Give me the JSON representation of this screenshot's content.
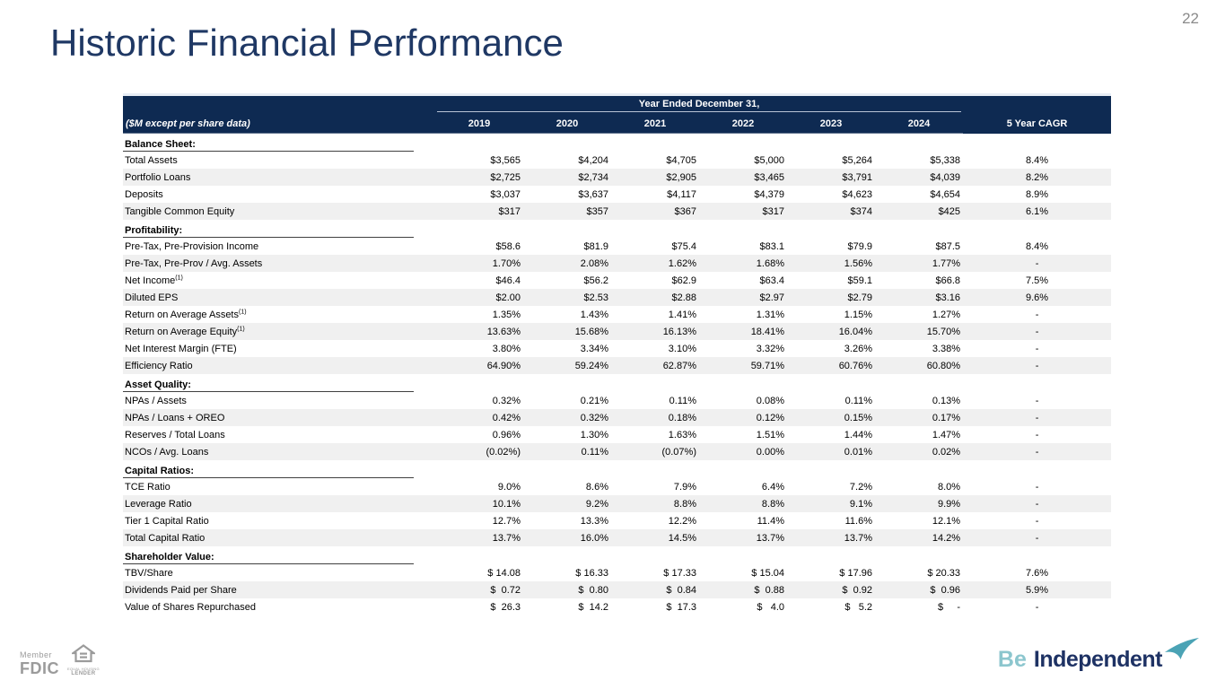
{
  "page": {
    "number": "22"
  },
  "title": "Historic Financial Performance",
  "colors": {
    "header_navy": "#0e2a52",
    "title_navy": "#1f3864",
    "row_stripe": "#f0f0f0",
    "brand_teal": "#4ba3b5",
    "brand_light_teal": "#8cc6ce",
    "footer_gray": "#9b9b9b"
  },
  "table": {
    "header": {
      "span_title": "Year Ended December 31,",
      "label_col": "($M except per share data)",
      "years": [
        "2019",
        "2020",
        "2021",
        "2022",
        "2023",
        "2024"
      ],
      "cagr_col": "5 Year CAGR"
    },
    "sections": [
      {
        "name": "Balance Sheet:",
        "rows": [
          {
            "label": "Total Assets",
            "values": [
              "$3,565",
              "$4,204",
              "$4,705",
              "$5,000",
              "$5,264",
              "$5,338"
            ],
            "cagr": "8.4%"
          },
          {
            "label": "Portfolio Loans",
            "values": [
              "$2,725",
              "$2,734",
              "$2,905",
              "$3,465",
              "$3,791",
              "$4,039"
            ],
            "cagr": "8.2%"
          },
          {
            "label": "Deposits",
            "values": [
              "$3,037",
              "$3,637",
              "$4,117",
              "$4,379",
              "$4,623",
              "$4,654"
            ],
            "cagr": "8.9%"
          },
          {
            "label": "Tangible Common Equity",
            "values": [
              "$317",
              "$357",
              "$367",
              "$317",
              "$374",
              "$425"
            ],
            "cagr": "6.1%"
          }
        ]
      },
      {
        "name": "Profitability:",
        "rows": [
          {
            "label": "Pre-Tax, Pre-Provision Income",
            "values": [
              "$58.6",
              "$81.9",
              "$75.4",
              "$83.1",
              "$79.9",
              "$87.5"
            ],
            "cagr": "8.4%"
          },
          {
            "label": "Pre-Tax, Pre-Prov / Avg. Assets",
            "values": [
              "1.70%",
              "2.08%",
              "1.62%",
              "1.68%",
              "1.56%",
              "1.77%"
            ],
            "cagr": "-"
          },
          {
            "label": "Net Income",
            "sup": "(1)",
            "values": [
              "$46.4",
              "$56.2",
              "$62.9",
              "$63.4",
              "$59.1",
              "$66.8"
            ],
            "cagr": "7.5%"
          },
          {
            "label": "Diluted EPS",
            "values": [
              "$2.00",
              "$2.53",
              "$2.88",
              "$2.97",
              "$2.79",
              "$3.16"
            ],
            "cagr": "9.6%"
          },
          {
            "label": "Return on Average Assets",
            "sup": "(1)",
            "values": [
              "1.35%",
              "1.43%",
              "1.41%",
              "1.31%",
              "1.15%",
              "1.27%"
            ],
            "cagr": "-"
          },
          {
            "label": "Return on Average Equity",
            "sup": "(1)",
            "values": [
              "13.63%",
              "15.68%",
              "16.13%",
              "18.41%",
              "16.04%",
              "15.70%"
            ],
            "cagr": "-"
          },
          {
            "label": "Net Interest Margin (FTE)",
            "values": [
              "3.80%",
              "3.34%",
              "3.10%",
              "3.32%",
              "3.26%",
              "3.38%"
            ],
            "cagr": "-"
          },
          {
            "label": "Efficiency Ratio",
            "values": [
              "64.90%",
              "59.24%",
              "62.87%",
              "59.71%",
              "60.76%",
              "60.80%"
            ],
            "cagr": "-"
          }
        ]
      },
      {
        "name": "Asset Quality:",
        "rows": [
          {
            "label": "NPAs / Assets",
            "values": [
              "0.32%",
              "0.21%",
              "0.11%",
              "0.08%",
              "0.11%",
              "0.13%"
            ],
            "cagr": "-"
          },
          {
            "label": "NPAs / Loans + OREO",
            "values": [
              "0.42%",
              "0.32%",
              "0.18%",
              "0.12%",
              "0.15%",
              "0.17%"
            ],
            "cagr": "-"
          },
          {
            "label": "Reserves / Total Loans",
            "values": [
              "0.96%",
              "1.30%",
              "1.63%",
              "1.51%",
              "1.44%",
              "1.47%"
            ],
            "cagr": "-"
          },
          {
            "label": "NCOs / Avg. Loans",
            "values": [
              "(0.02%)",
              "0.11%",
              "(0.07%)",
              "0.00%",
              "0.01%",
              "0.02%"
            ],
            "cagr": "-"
          }
        ]
      },
      {
        "name": "Capital Ratios:",
        "rows": [
          {
            "label": "TCE Ratio",
            "values": [
              "9.0%",
              "8.6%",
              "7.9%",
              "6.4%",
              "7.2%",
              "8.0%"
            ],
            "cagr": "-"
          },
          {
            "label": "Leverage Ratio",
            "values": [
              "10.1%",
              "9.2%",
              "8.8%",
              "8.8%",
              "9.1%",
              "9.9%"
            ],
            "cagr": "-"
          },
          {
            "label": "Tier 1 Capital Ratio",
            "values": [
              "12.7%",
              "13.3%",
              "12.2%",
              "11.4%",
              "11.6%",
              "12.1%"
            ],
            "cagr": "-"
          },
          {
            "label": "Total Capital Ratio",
            "values": [
              "13.7%",
              "16.0%",
              "14.5%",
              "13.7%",
              "13.7%",
              "14.2%"
            ],
            "cagr": "-"
          }
        ]
      },
      {
        "name": "Shareholder Value:",
        "rows": [
          {
            "label": "TBV/Share",
            "values": [
              "$ 14.08",
              "$ 16.33",
              "$ 17.33",
              "$ 15.04",
              "$ 17.96",
              "$ 20.33"
            ],
            "cagr": "7.6%"
          },
          {
            "label": "Dividends Paid per Share",
            "values": [
              "$  0.72",
              "$  0.80",
              "$  0.84",
              "$  0.88",
              "$  0.92",
              "$  0.96"
            ],
            "cagr": "5.9%"
          },
          {
            "label": "Value of Shares Repurchased",
            "values": [
              "$  26.3",
              "$  14.2",
              "$  17.3",
              "$   4.0",
              "$   5.2",
              "$     -"
            ],
            "cagr": "-"
          }
        ]
      }
    ]
  },
  "footer": {
    "member": "Member",
    "fdic": "FDIC",
    "ehl_line1": "EQUAL HOUSING",
    "ehl_line2": "LENDER",
    "be": "Be",
    "independent": "Independent"
  }
}
